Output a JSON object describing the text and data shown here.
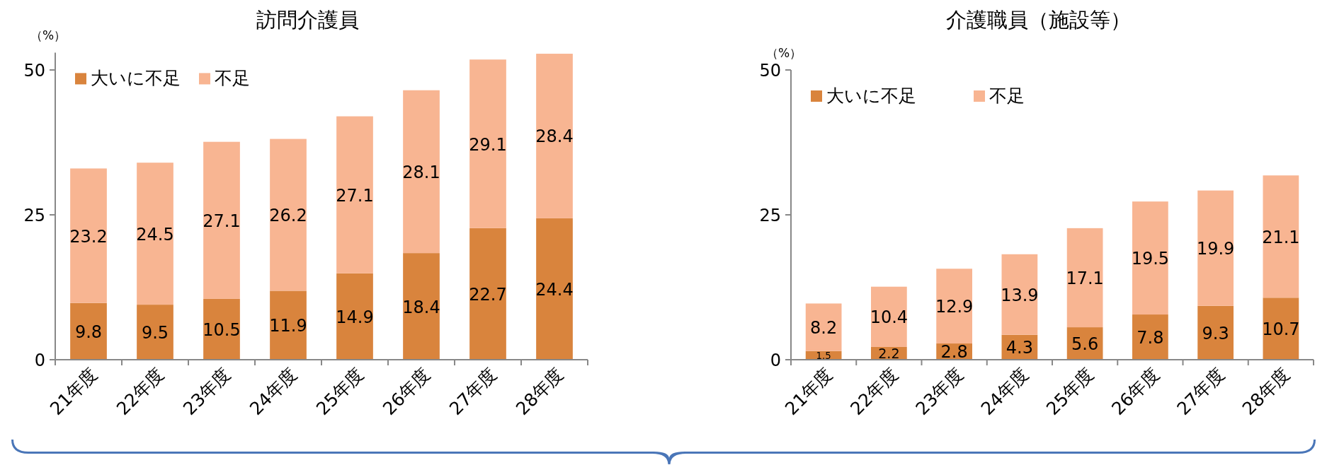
{
  "chart_data": [
    {
      "type": "bar",
      "stacked": true,
      "title": "訪問介護員",
      "ylabel": "（%）",
      "categories": [
        "21年度",
        "22年度",
        "23年度",
        "24年度",
        "25年度",
        "26年度",
        "27年度",
        "28年度"
      ],
      "series": [
        {
          "name": "大いに不足",
          "color": "#d9843d",
          "values": [
            9.8,
            9.5,
            10.5,
            11.9,
            14.9,
            18.4,
            22.7,
            24.4
          ]
        },
        {
          "name": "不足",
          "color": "#f8b592",
          "values": [
            23.2,
            24.5,
            27.1,
            26.2,
            27.1,
            28.1,
            29.1,
            28.4
          ]
        }
      ],
      "ylim": [
        0,
        53
      ],
      "yticks": [
        0,
        25,
        50
      ],
      "data_labels": true,
      "legend": "top left"
    },
    {
      "type": "bar",
      "stacked": true,
      "title": "介護職員（施設等）",
      "ylabel": "（%）",
      "categories": [
        "21年度",
        "22年度",
        "23年度",
        "24年度",
        "25年度",
        "26年度",
        "27年度",
        "28年度"
      ],
      "series": [
        {
          "name": "大いに不足",
          "color": "#d9843d",
          "values": [
            1.5,
            2.2,
            2.8,
            4.3,
            5.6,
            7.8,
            9.3,
            10.7
          ]
        },
        {
          "name": "不足",
          "color": "#f8b592",
          "values": [
            8.2,
            10.4,
            12.9,
            13.9,
            17.1,
            19.5,
            19.9,
            21.1
          ]
        }
      ],
      "ylim": [
        0,
        50
      ],
      "yticks": [
        0,
        25,
        50
      ],
      "data_labels": true,
      "legend": "top left"
    }
  ]
}
